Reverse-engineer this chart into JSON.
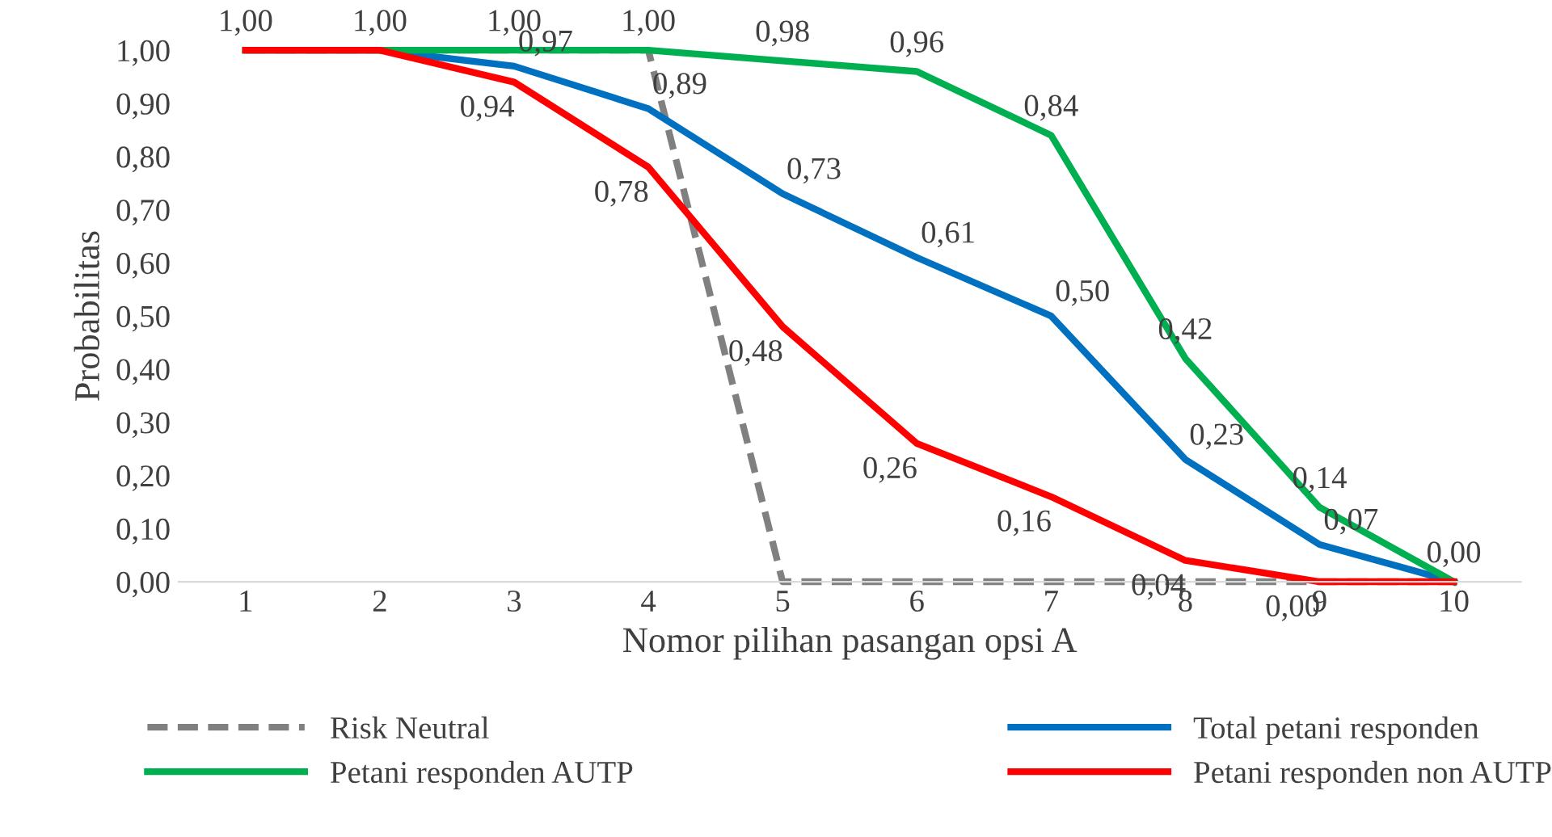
{
  "chart_data": {
    "type": "line",
    "xlabel": "Nomor pilihan pasangan opsi A",
    "ylabel": "Probabilitas",
    "categories": [
      "1",
      "2",
      "3",
      "4",
      "5",
      "6",
      "7",
      "8",
      "9",
      "10"
    ],
    "series": [
      {
        "name": "Risk Neutral",
        "color": "#808080",
        "line_style": "dashed",
        "values": [
          1,
          1,
          1,
          1,
          0,
          0,
          0,
          0,
          0,
          0
        ]
      },
      {
        "name": "Total petani responden",
        "color": "#0070c0",
        "values": [
          1,
          1,
          0.97,
          0.89,
          0.73,
          0.61,
          0.5,
          0.23,
          0.07,
          0.0
        ],
        "value_labels": [
          null,
          null,
          "0,97",
          "0,89",
          "0,73",
          "0,61",
          "0,50",
          "0,23",
          "0,07",
          null
        ]
      },
      {
        "name": "Petani responden AUTP",
        "color": "#00b050",
        "values": [
          1,
          1,
          1.0,
          1.0,
          0.98,
          0.96,
          0.84,
          0.42,
          0.14,
          0.0
        ],
        "value_labels": [
          "1,00",
          "1,00",
          "1,00",
          "1,00",
          "0,98",
          "0,96",
          "0,84",
          "0,42",
          "0,14",
          "0,00"
        ]
      },
      {
        "name": "Petani responden non AUTP",
        "color": "#ff0000",
        "values": [
          1,
          1,
          0.94,
          0.78,
          0.48,
          0.26,
          0.16,
          0.04,
          0.0,
          0.0
        ],
        "value_labels": [
          null,
          null,
          "0,94",
          "0,78",
          "0,48",
          "0,26",
          "0,16",
          "0,04",
          "0,00",
          null
        ]
      }
    ],
    "ylim": [
      0,
      1
    ],
    "yticks": [
      {
        "value": 0,
        "label": "0,00"
      },
      {
        "value": 0.1,
        "label": "0,10"
      },
      {
        "value": 0.2,
        "label": "0,20"
      },
      {
        "value": 0.3,
        "label": "0,30"
      },
      {
        "value": 0.4,
        "label": "0,40"
      },
      {
        "value": 0.5,
        "label": "0,50"
      },
      {
        "value": 0.6,
        "label": "0,60"
      },
      {
        "value": 0.7,
        "label": "0,70"
      },
      {
        "value": 0.8,
        "label": "0,80"
      },
      {
        "value": 0.9,
        "label": "0,90"
      },
      {
        "value": 1,
        "label": "1,00"
      }
    ],
    "grid": false,
    "legend": "bottom",
    "marker": "none"
  }
}
